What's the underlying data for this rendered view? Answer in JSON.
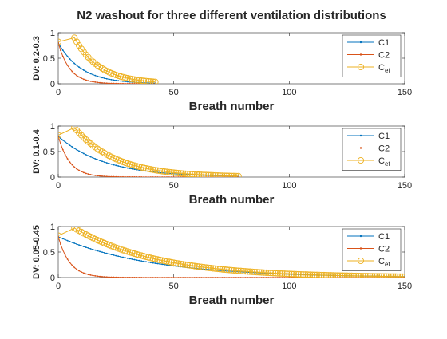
{
  "title": "N2 washout for three different ventilation distributions",
  "colors": {
    "c1": "#0072BD",
    "c2": "#D95319",
    "cet": "#EDB120",
    "axis": "#262626"
  },
  "chart_data": [
    {
      "type": "line",
      "ylabel": "DV: 0.2-0.3",
      "xlabel": "Breath number",
      "xlim": [
        0,
        150
      ],
      "ylim": [
        0,
        1
      ],
      "xticks": [
        "0",
        "50",
        "100",
        "150"
      ],
      "yticks": [
        "0",
        "0.5",
        "1"
      ],
      "legend": {
        "position": "top-right",
        "entries": [
          "C1",
          "C2",
          "C"
        ],
        "cet_subscript": "et"
      },
      "series": [
        {
          "name": "C1",
          "x_start": 0,
          "x_end": 42,
          "y0": 0.8,
          "decay": 0.1
        },
        {
          "name": "C2",
          "x_start": 0,
          "x_end": 42,
          "y0": 0.8,
          "decay": 0.2
        },
        {
          "name": "Cet",
          "x_start": 0,
          "x_end": 42,
          "x_values": [
            0,
            7,
            8,
            9,
            10,
            11,
            12,
            13,
            14,
            15,
            16,
            17,
            18,
            19,
            20,
            21,
            22,
            23,
            24,
            25,
            26,
            27,
            28,
            29,
            30,
            31,
            32,
            33,
            34,
            35,
            36,
            37,
            38,
            39,
            40,
            41,
            42
          ],
          "y0": 0.82,
          "peak": 0.9,
          "decay": 0.092
        }
      ]
    },
    {
      "type": "line",
      "ylabel": "DV: 0.1-0.4",
      "xlabel": "Breath number",
      "xlim": [
        0,
        150
      ],
      "ylim": [
        0,
        1
      ],
      "xticks": [
        "0",
        "50",
        "100",
        "150"
      ],
      "yticks": [
        "0",
        "0.5",
        "1"
      ],
      "legend": {
        "position": "top-right",
        "entries": [
          "C1",
          "C2",
          "C"
        ],
        "cet_subscript": "et"
      },
      "series": [
        {
          "name": "C1",
          "x_start": 0,
          "x_end": 78,
          "y0": 0.8,
          "decay": 0.05
        },
        {
          "name": "C2",
          "x_start": 0,
          "x_end": 78,
          "y0": 0.8,
          "decay": 0.2
        },
        {
          "name": "Cet",
          "x_start": 0,
          "x_end": 78,
          "x_values": [
            0,
            7,
            8,
            9,
            10,
            11,
            12,
            13,
            14,
            15,
            16,
            17,
            18,
            19,
            20,
            21,
            22,
            23,
            24,
            25,
            26,
            27,
            28,
            29,
            30,
            31,
            32,
            33,
            34,
            35,
            36,
            37,
            38,
            39,
            40,
            41,
            42,
            43,
            44,
            45,
            46,
            47,
            48,
            49,
            50,
            51,
            52,
            53,
            54,
            55,
            56,
            57,
            58,
            59,
            60,
            61,
            62,
            63,
            64,
            65,
            66,
            67,
            68,
            69,
            70,
            71,
            72,
            73,
            74,
            75,
            76,
            77,
            78
          ],
          "y0": 0.82,
          "peak": 0.97,
          "decay": 0.056
        }
      ]
    },
    {
      "type": "line",
      "ylabel": "DV: 0.05-0.45",
      "xlabel": "Breath number",
      "xlim": [
        0,
        150
      ],
      "ylim": [
        0,
        1
      ],
      "xticks": [
        "0",
        "50",
        "100",
        "150"
      ],
      "yticks": [
        "0",
        "0.5",
        "1"
      ],
      "legend": {
        "position": "top-right",
        "entries": [
          "C1",
          "C2",
          "C"
        ],
        "cet_subscript": "et"
      },
      "series": [
        {
          "name": "C1",
          "x_start": 0,
          "x_end": 150,
          "y0": 0.8,
          "decay": 0.025
        },
        {
          "name": "C2",
          "x_start": 0,
          "x_end": 150,
          "y0": 0.8,
          "decay": 0.2
        },
        {
          "name": "Cet",
          "x_start": 0,
          "x_end": 150,
          "x_values": [
            0,
            7,
            8,
            9,
            10,
            11,
            12,
            13,
            14,
            15,
            16,
            17,
            18,
            19,
            20,
            21,
            22,
            23,
            24,
            25,
            26,
            27,
            28,
            29,
            30,
            31,
            32,
            33,
            34,
            35,
            36,
            37,
            38,
            39,
            40,
            41,
            42,
            43,
            44,
            45,
            46,
            47,
            48,
            49,
            50,
            51,
            52,
            53,
            54,
            55,
            56,
            57,
            58,
            59,
            60,
            61,
            62,
            63,
            64,
            65,
            66,
            67,
            68,
            69,
            70,
            71,
            72,
            73,
            74,
            75,
            76,
            77,
            78,
            79,
            80,
            81,
            82,
            83,
            84,
            85,
            86,
            87,
            88,
            89,
            90,
            91,
            92,
            93,
            94,
            95,
            96,
            97,
            98,
            99,
            100,
            101,
            102,
            103,
            104,
            105,
            106,
            107,
            108,
            109,
            110,
            111,
            112,
            113,
            114,
            115,
            116,
            117,
            118,
            119,
            120,
            121,
            122,
            123,
            124,
            125,
            126,
            127,
            128,
            129,
            130,
            131,
            132,
            133,
            134,
            135,
            136,
            137,
            138,
            139,
            140,
            141,
            142,
            143,
            144,
            145,
            146,
            147,
            148,
            149,
            150
          ],
          "y0": 0.82,
          "peak": 0.97,
          "decay": 0.028
        }
      ]
    }
  ]
}
